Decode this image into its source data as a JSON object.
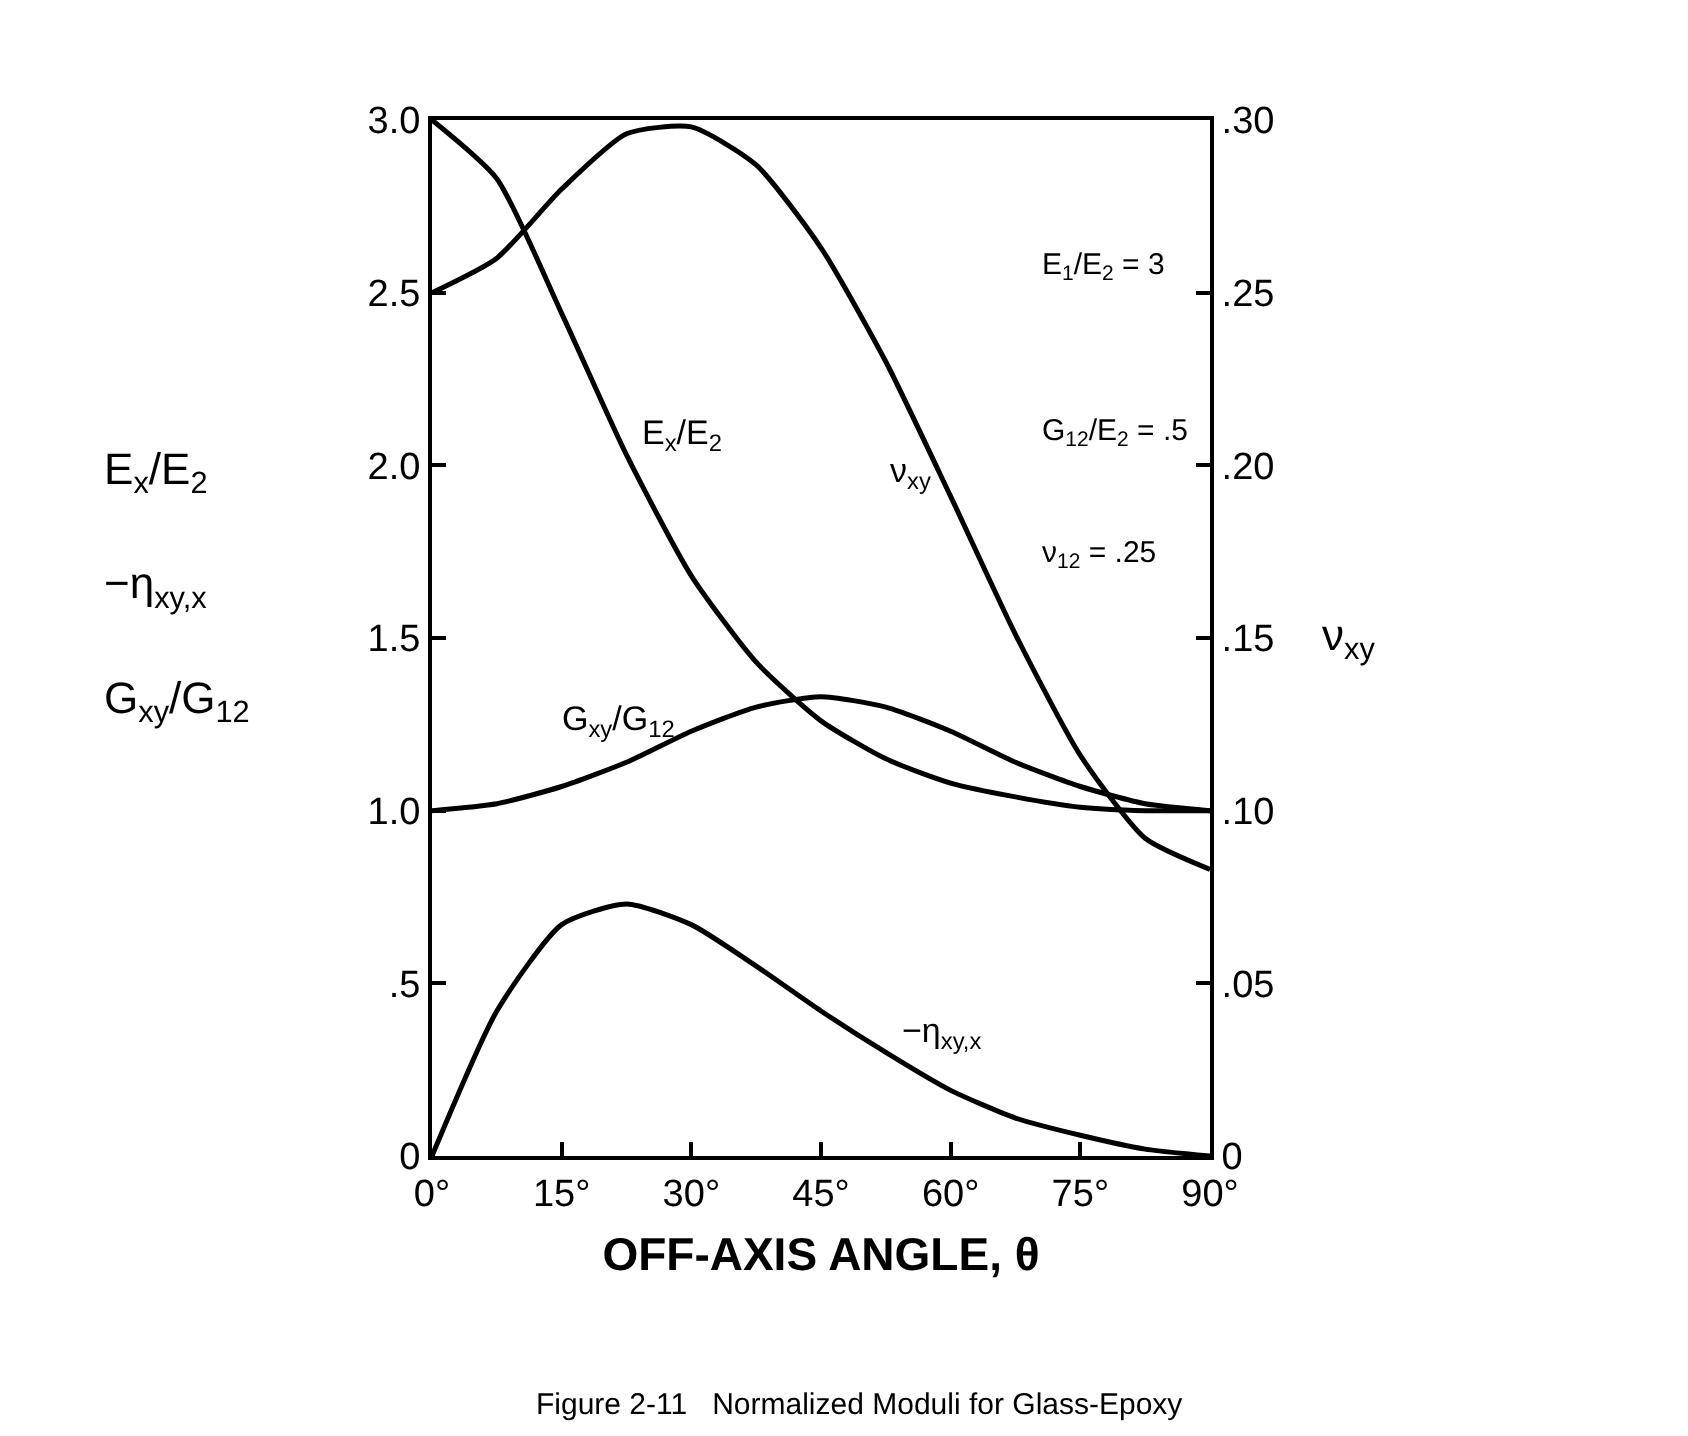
{
  "chart_data": {
    "type": "line",
    "xlabel": "OFF-AXIS ANGLE, θ",
    "ylabel": "E$_{x}$/E$_{2}$\n−η$_{xy,x}$\nG$_{xy}$/G$_{12}$",
    "y2label": "ν$_{xy}$",
    "x": [
      0,
      7.5,
      15,
      22.5,
      30,
      37.5,
      45,
      52.5,
      60,
      67.5,
      75,
      82.5,
      90
    ],
    "series": [
      {
        "name": "E$_{x}$/E$_{2}$",
        "color": "#000000",
        "values": [
          3,
          2.83,
          2.44,
          2.03,
          1.68,
          1.43,
          1.26,
          1.15,
          1.08,
          1.04,
          1.01,
          1.0,
          1.0
        ]
      },
      {
        "name": "G$_{xy}$/G$_{12}$",
        "color": "#000000",
        "values": [
          1.0,
          1.02,
          1.07,
          1.14,
          1.23,
          1.3,
          1.33,
          1.3,
          1.23,
          1.14,
          1.07,
          1.02,
          1.0
        ]
      },
      {
        "name": "−η$_{xy,x}$",
        "color": "#000000",
        "values": [
          0,
          0.42,
          0.67,
          0.73,
          0.67,
          0.55,
          0.42,
          0.3,
          0.19,
          0.11,
          0.06,
          0.02,
          0
        ]
      },
      {
        "name": "ν$_{xy}$",
        "color": "#000000",
        "axis": "y2",
        "values": [
          0.25,
          0.26,
          0.28,
          0.296,
          0.298,
          0.287,
          0.263,
          0.23,
          0.191,
          0.151,
          0.116,
          0.092,
          0.083
        ]
      }
    ],
    "xlim": [
      0,
      90
    ],
    "xticks": [
      {
        "value": 0,
        "label": "0°"
      },
      {
        "value": 15,
        "label": "15°"
      },
      {
        "value": 30,
        "label": "30°"
      },
      {
        "value": 45,
        "label": "45°"
      },
      {
        "value": 60,
        "label": "60°"
      },
      {
        "value": 75,
        "label": "75°"
      },
      {
        "value": 90,
        "label": "90°"
      }
    ],
    "ylim": [
      0,
      3
    ],
    "yticks": [
      0,
      {
        "value": 0.5,
        "label": ".5"
      },
      {
        "value": 1,
        "label": "1.0"
      },
      {
        "value": 1.5,
        "label": "1.5"
      },
      {
        "value": 2,
        "label": "2.0"
      },
      {
        "value": 2.5,
        "label": "2.5"
      },
      {
        "value": 3,
        "label": "3.0"
      }
    ],
    "y2lim": [
      0,
      0.3
    ],
    "y2ticks": [
      0,
      {
        "value": 0.05,
        "label": ".05"
      },
      {
        "value": 0.1,
        "label": ".10"
      },
      {
        "value": 0.15,
        "label": ".15"
      },
      {
        "value": 0.2,
        "label": ".20"
      },
      {
        "value": 0.25,
        "label": ".25"
      },
      {
        "value": 0.3,
        "label": ".30"
      }
    ],
    "grid": false,
    "legend": false,
    "marker": "none",
    "line_style": "solid",
    "annotations": [
      "E$_{1}$/E$_{2}$ = 3",
      "G$_{12}$/E$_{2}$ = .5",
      "ν$_{12}$ = .25",
      "Figure 2-11   Normalized Moduli for Glass-Epoxy"
    ]
  }
}
